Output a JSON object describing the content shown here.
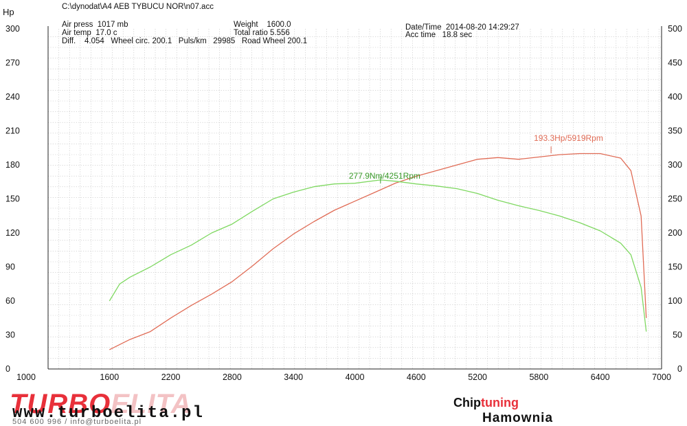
{
  "header": {
    "file_path": "C:\\dynodat\\A4 AEB TYBUCU NOR\\n07.acc",
    "air_press": "Air press  1017 mb",
    "air_temp": "Air temp  17.0 c",
    "diff_line": "Diff.    4.054   Wheel circ. 200.1   Puls/km   29985   Road Wheel 200.1",
    "weight": "Weight    1600.0",
    "total_ratio": "Total ratio 5.556",
    "datetime": "Date/Time  2014-08-20 14:29:27",
    "acc_time": "Acc time   18.8 sec"
  },
  "chart_data": {
    "type": "line",
    "ylabel_left": "Hp",
    "x_ticks": [
      1000,
      1600,
      2200,
      2800,
      3400,
      4000,
      4600,
      5200,
      5800,
      6400,
      7000
    ],
    "y_left_ticks": [
      0,
      30,
      60,
      90,
      120,
      150,
      180,
      210,
      240,
      270,
      300
    ],
    "y_right_ticks": [
      0,
      50,
      100,
      150,
      200,
      250,
      300,
      350,
      400,
      450,
      500
    ],
    "xlim": [
      1000,
      7000
    ],
    "ylim_left": [
      0,
      300
    ],
    "ylim_right": [
      0,
      500
    ],
    "grid": true,
    "series": [
      {
        "axis": "left",
        "color": "#e06b55",
        "x": [
          1600,
          1800,
          2000,
          2200,
          2400,
          2600,
          2800,
          3000,
          3200,
          3400,
          3600,
          3800,
          4000,
          4200,
          4400,
          4600,
          4800,
          5000,
          5200,
          5400,
          5600,
          5800,
          6000,
          6200,
          6400,
          6600,
          6700,
          6800,
          6850
        ],
        "values": [
          17,
          26,
          33,
          45,
          56,
          66,
          77,
          91,
          106,
          119,
          130,
          140,
          148,
          156,
          164,
          170,
          175,
          180,
          185,
          186.5,
          185,
          187,
          189,
          190,
          190,
          186,
          175,
          135,
          45
        ]
      },
      {
        "axis": "right",
        "color": "#7ed860",
        "x": [
          1600,
          1700,
          1800,
          2000,
          2200,
          2400,
          2600,
          2800,
          3000,
          3200,
          3400,
          3600,
          3800,
          4000,
          4251,
          4400,
          4600,
          4800,
          5000,
          5200,
          5400,
          5600,
          5800,
          6000,
          6200,
          6400,
          6600,
          6700,
          6800,
          6850
        ],
        "values": [
          100,
          125,
          135,
          150,
          168,
          182,
          200,
          213,
          232,
          250,
          260,
          268,
          272,
          273,
          277.9,
          276,
          272,
          269,
          265,
          258,
          248,
          240,
          233,
          225,
          215,
          203,
          185,
          168,
          120,
          55
        ]
      }
    ],
    "annotations": [
      {
        "text": "193.3Hp/5919Rpm",
        "x": 5919,
        "y": 193.3,
        "axis": "left",
        "color": "#e06b55"
      },
      {
        "text": "277.9Nm/4251Rpm",
        "x": 4251,
        "y": 277.9,
        "axis": "right",
        "color": "#3a9a2a"
      }
    ]
  },
  "footer": {
    "brand_part1": "TURBO",
    "brand_part2": "ELITA",
    "url": "www.turboelita.pl",
    "contact": "504 600 996 / info@turboelita.pl",
    "chip": "Chip",
    "tuning": "tuning",
    "hamownia": "Hamownia"
  }
}
